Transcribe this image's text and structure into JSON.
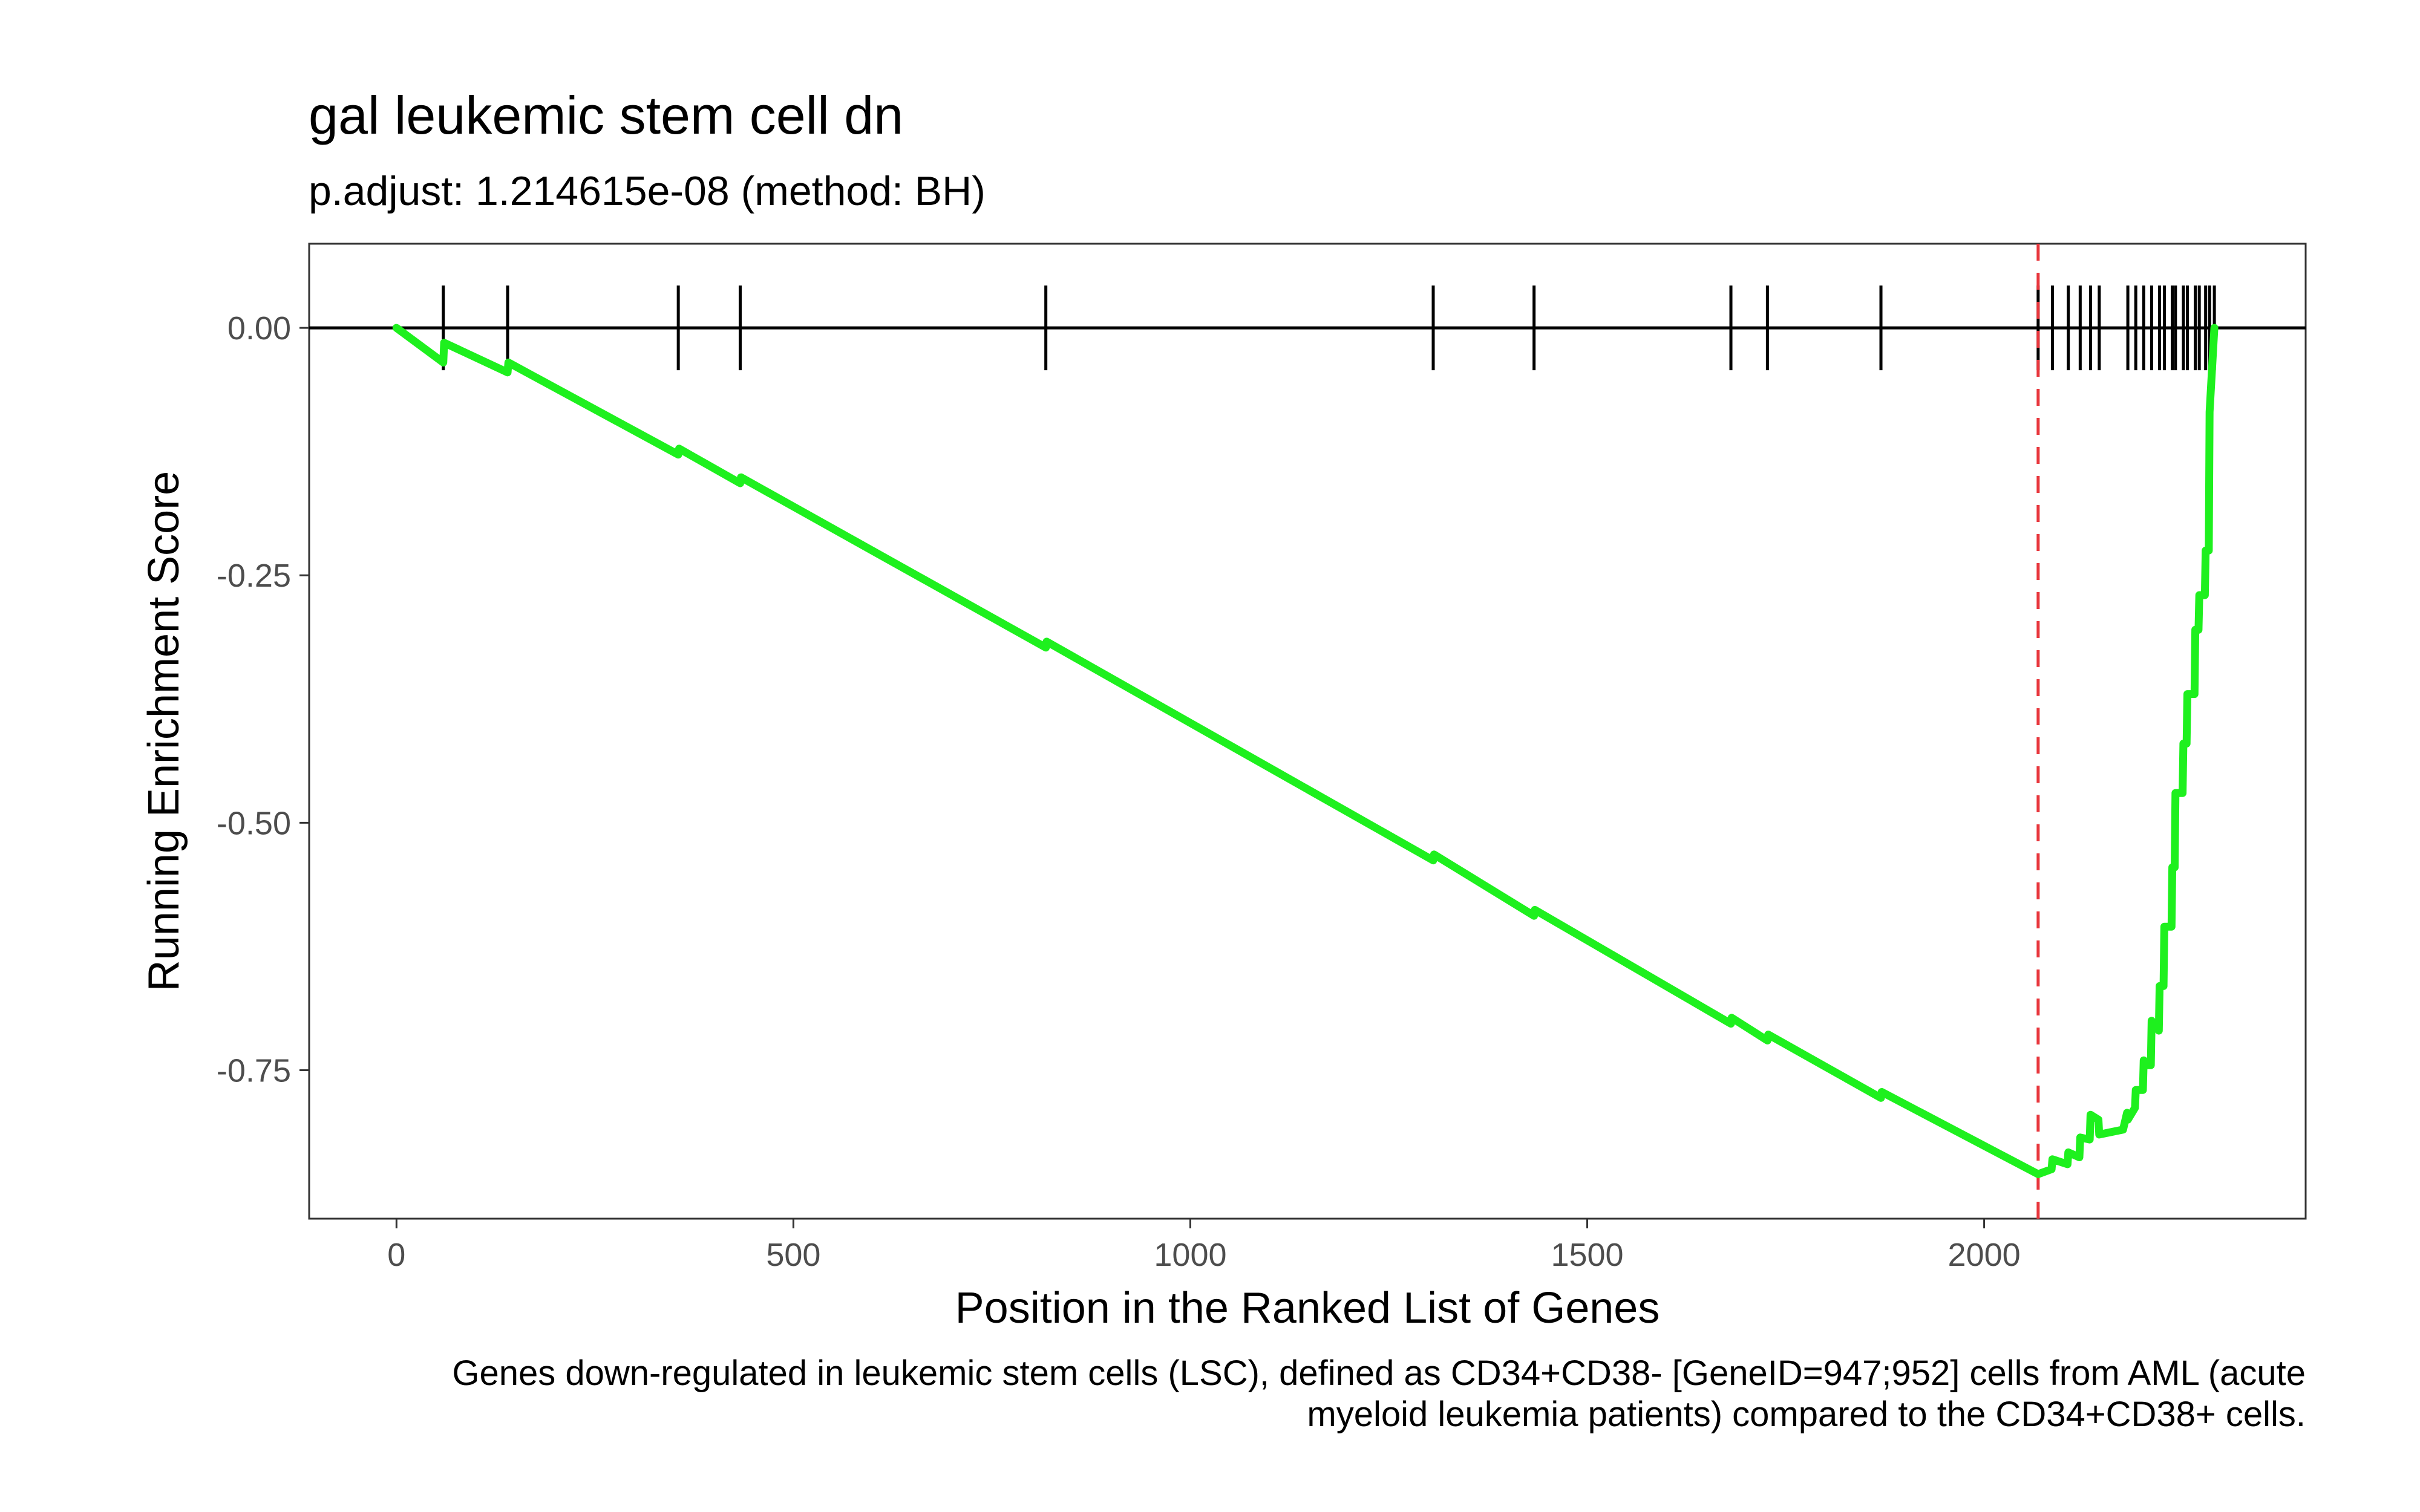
{
  "chart_data": {
    "type": "line",
    "title": "gal leukemic stem cell dn",
    "subtitle": "p.adjust: 1.214615e-08 (method: BH)",
    "xlabel": "Position in the Ranked List of Genes",
    "ylabel": "Running Enrichment Score",
    "caption": [
      "Genes down-regulated in leukemic stem cells (LSC), defined as CD34+CD38- [GeneID=947;952] cells from AML (acute",
      "myeloid leukemia patients) compared to the CD34+CD38+ cells."
    ],
    "xlim": [
      -110,
      2405
    ],
    "ylim": [
      -0.9,
      0.085
    ],
    "x_ticks": [
      0,
      500,
      1000,
      1500,
      2000
    ],
    "x_tick_labels": [
      "0",
      "500",
      "1000",
      "1500",
      "2000"
    ],
    "y_ticks": [
      0,
      -0.25,
      -0.5,
      -0.75
    ],
    "y_tick_labels": [
      "0.00",
      "-0.25",
      "-0.50",
      "-0.75"
    ],
    "grid": false,
    "line_color": "#1EF01E",
    "reference_line_color": "#E8363C",
    "max_deviation_position": 2068,
    "series": [
      {
        "x": [
          0,
          59,
          60,
          140,
          141,
          355,
          356,
          433,
          434,
          818,
          819,
          1306,
          1307,
          1433,
          1434,
          1681,
          1682,
          1727,
          1728,
          1870,
          1871,
          2068,
          2085,
          2086,
          2105,
          2106,
          2120,
          2121,
          2133,
          2134,
          2144,
          2145,
          2175,
          2180,
          2181,
          2190,
          2191,
          2200,
          2201,
          2207,
          2210,
          2211,
          2220,
          2221,
          2226,
          2227,
          2236,
          2237,
          2240,
          2241,
          2250,
          2251,
          2255,
          2256,
          2265,
          2266,
          2270,
          2271,
          2278,
          2279,
          2283,
          2284,
          2290
        ],
        "y": [
          0,
          -0.035,
          -0.015,
          -0.045,
          -0.035,
          -0.128,
          -0.122,
          -0.157,
          -0.151,
          -0.323,
          -0.317,
          -0.538,
          -0.532,
          -0.594,
          -0.588,
          -0.703,
          -0.697,
          -0.72,
          -0.714,
          -0.778,
          -0.772,
          -0.855,
          -0.85,
          -0.84,
          -0.845,
          -0.833,
          -0.838,
          -0.818,
          -0.82,
          -0.795,
          -0.8,
          -0.815,
          -0.81,
          -0.793,
          -0.8,
          -0.788,
          -0.77,
          -0.77,
          -0.74,
          -0.745,
          -0.745,
          -0.7,
          -0.71,
          -0.665,
          -0.665,
          -0.605,
          -0.605,
          -0.545,
          -0.545,
          -0.47,
          -0.47,
          -0.42,
          -0.42,
          -0.37,
          -0.37,
          -0.305,
          -0.305,
          -0.27,
          -0.27,
          -0.225,
          -0.225,
          -0.085,
          0
        ]
      }
    ],
    "gene_hits": [
      59,
      140,
      355,
      433,
      818,
      1306,
      1433,
      1681,
      1727,
      1870,
      2068,
      2086,
      2106,
      2121,
      2134,
      2145,
      2181,
      2191,
      2201,
      2211,
      2221,
      2227,
      2237,
      2241,
      2251,
      2256,
      2266,
      2271,
      2279,
      2284,
      2290
    ]
  }
}
